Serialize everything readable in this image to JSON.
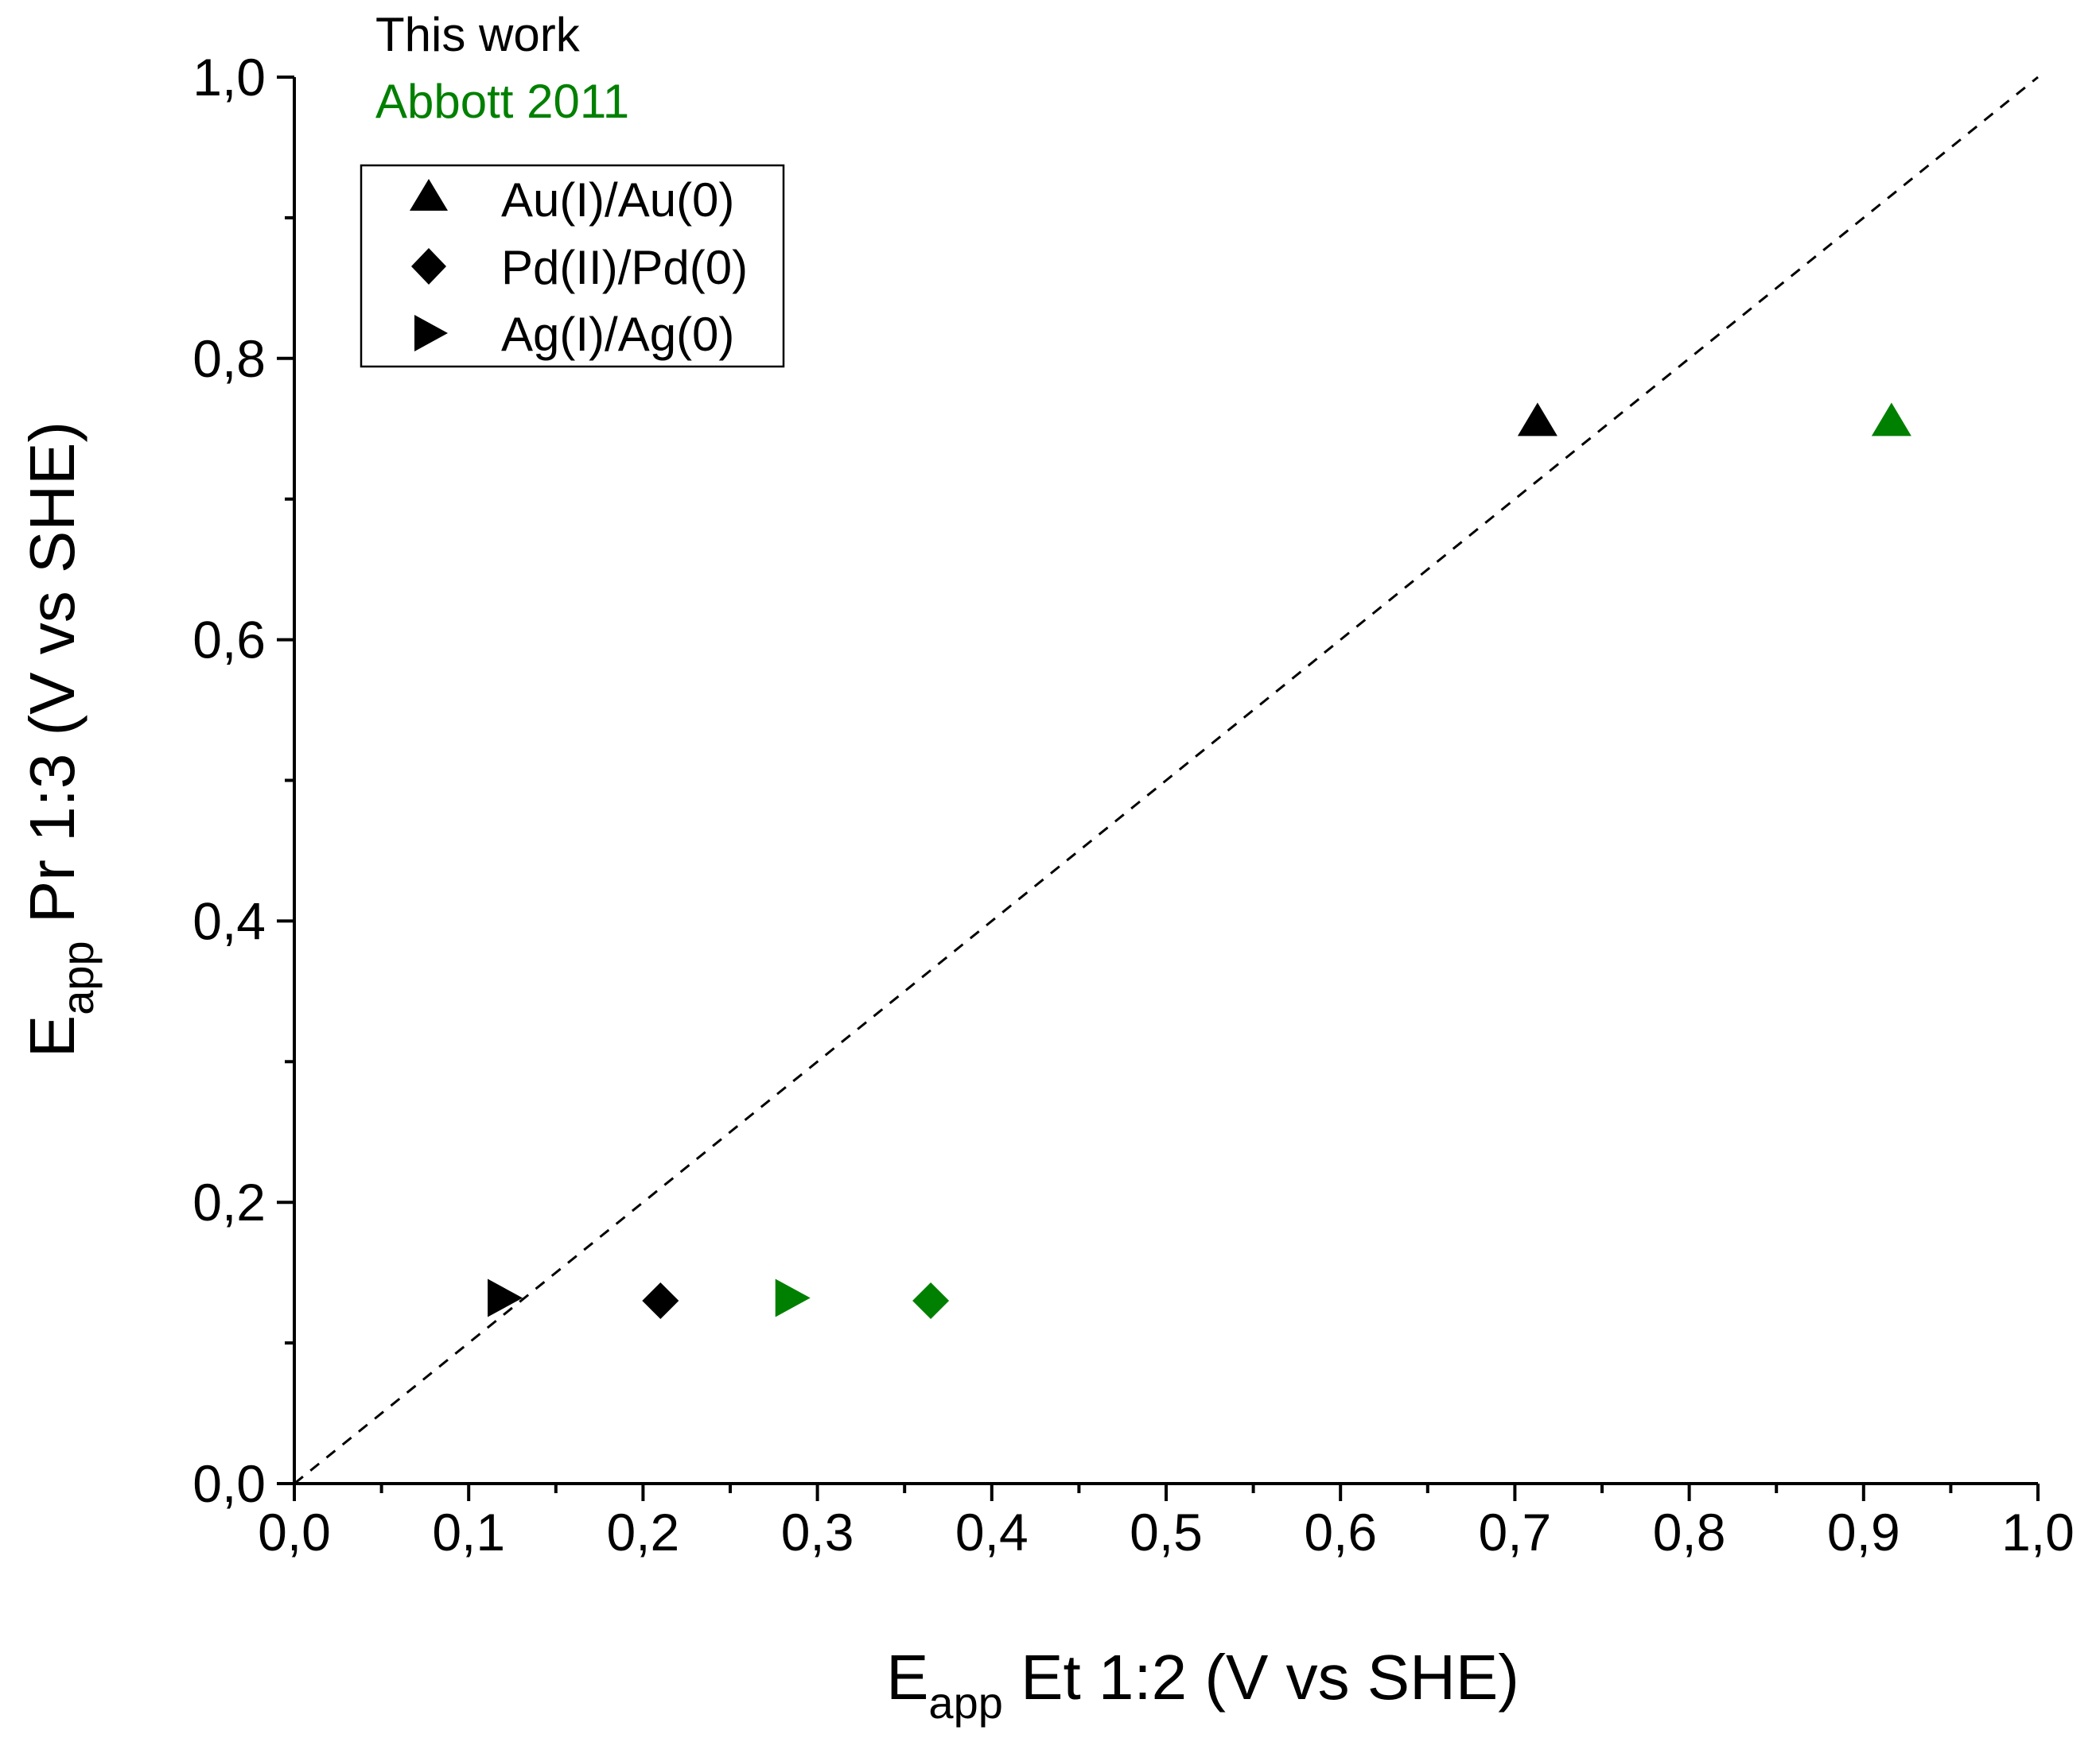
{
  "chart_data": {
    "type": "scatter",
    "x_axis": {
      "label_main": "E",
      "label_sub": "app",
      "label_rest": " Et 1:2 (V vs SHE)",
      "range": [
        0.0,
        1.0
      ],
      "major_ticks": [
        0.0,
        0.1,
        0.2,
        0.3,
        0.4,
        0.5,
        0.6,
        0.7,
        0.8,
        0.9,
        1.0
      ],
      "tick_labels": [
        "0,0",
        "0,1",
        "0,2",
        "0,3",
        "0,4",
        "0,5",
        "0,6",
        "0,7",
        "0,8",
        "0,9",
        "1,0"
      ],
      "minor_ticks": [
        0.05,
        0.15,
        0.25,
        0.35,
        0.45,
        0.55,
        0.65,
        0.75,
        0.85,
        0.95
      ]
    },
    "y_axis": {
      "label_main": "E",
      "label_sub": "app",
      "label_rest": " Pr 1:3 (V vs SHE)",
      "range": [
        0.0,
        1.0
      ],
      "major_ticks": [
        0.0,
        0.2,
        0.4,
        0.6,
        0.8,
        1.0
      ],
      "tick_labels": [
        "0,0",
        "0,2",
        "0,4",
        "0,6",
        "0,8",
        "1,0"
      ],
      "minor_ticks": [
        0.1,
        0.3,
        0.5,
        0.7,
        0.9
      ]
    },
    "grid": false,
    "reference_line": {
      "style": "dashed",
      "x": [
        0.0,
        1.0
      ],
      "y": [
        0.0,
        1.0
      ]
    },
    "annotations": [
      {
        "text": "This work",
        "color": "#000000"
      },
      {
        "text": "Abbott 2011",
        "color": "#008000"
      }
    ],
    "legend": {
      "position": "top-left",
      "entries": [
        {
          "label": "Au(I)/Au(0)",
          "marker": "triangle-up"
        },
        {
          "label": "Pd(II)/Pd(0)",
          "marker": "diamond"
        },
        {
          "label": "Ag(I)/Ag(0)",
          "marker": "triangle-right"
        }
      ]
    },
    "points": [
      {
        "series": "Au(I)/Au(0)",
        "source": "This work",
        "marker": "triangle-up",
        "color": "#000000",
        "x": 0.713,
        "y": 0.755
      },
      {
        "series": "Au(I)/Au(0)",
        "source": "Abbott 2011",
        "marker": "triangle-up",
        "color": "#008000",
        "x": 0.916,
        "y": 0.755
      },
      {
        "series": "Pd(II)/Pd(0)",
        "source": "This work",
        "marker": "diamond",
        "color": "#000000",
        "x": 0.21,
        "y": 0.13
      },
      {
        "series": "Pd(II)/Pd(0)",
        "source": "Abbott 2011",
        "marker": "diamond",
        "color": "#008000",
        "x": 0.365,
        "y": 0.13
      },
      {
        "series": "Ag(I)/Ag(0)",
        "source": "This work",
        "marker": "triangle-right",
        "color": "#000000",
        "x": 0.12,
        "y": 0.132
      },
      {
        "series": "Ag(I)/Ag(0)",
        "source": "Abbott 2011",
        "marker": "triangle-right",
        "color": "#008000",
        "x": 0.285,
        "y": 0.132
      }
    ]
  }
}
